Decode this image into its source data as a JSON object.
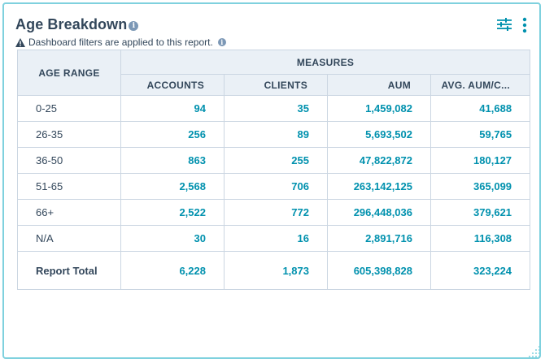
{
  "card": {
    "title": "Age Breakdown",
    "info_glyph": "i",
    "filter_note": "Dashboard filters are applied to this report.",
    "icons": {
      "title_info": "info-icon",
      "filter_warning": "warning-icon",
      "filter_info": "info-icon",
      "tune": "sliders-icon",
      "more": "vertical-dots-icon",
      "resize": "resize-grip-icon"
    }
  },
  "table": {
    "row_header": "AGE RANGE",
    "group_header": "MEASURES",
    "columns": [
      "ACCOUNTS",
      "CLIENTS",
      "AUM",
      "AVG. AUM/C..."
    ],
    "rows": [
      {
        "label": "0-25",
        "values": [
          "94",
          "35",
          "1,459,082",
          "41,688"
        ]
      },
      {
        "label": "26-35",
        "values": [
          "256",
          "89",
          "5,693,502",
          "59,765"
        ]
      },
      {
        "label": "36-50",
        "values": [
          "863",
          "255",
          "47,822,872",
          "180,127"
        ]
      },
      {
        "label": "51-65",
        "values": [
          "2,568",
          "706",
          "263,142,125",
          "365,099"
        ]
      },
      {
        "label": "66+",
        "values": [
          "2,522",
          "772",
          "296,448,036",
          "379,621"
        ]
      },
      {
        "label": "N/A",
        "values": [
          "30",
          "16",
          "2,891,716",
          "116,308"
        ]
      }
    ],
    "total": {
      "label": "Report Total",
      "values": [
        "6,228",
        "1,873",
        "605,398,828",
        "323,224"
      ]
    }
  },
  "colors": {
    "border_accent": "#7fd1de",
    "value_text": "#0091ae",
    "header_bg": "#eaf0f6",
    "icon_teal": "#0091ae",
    "info_gray": "#7c98b6"
  }
}
